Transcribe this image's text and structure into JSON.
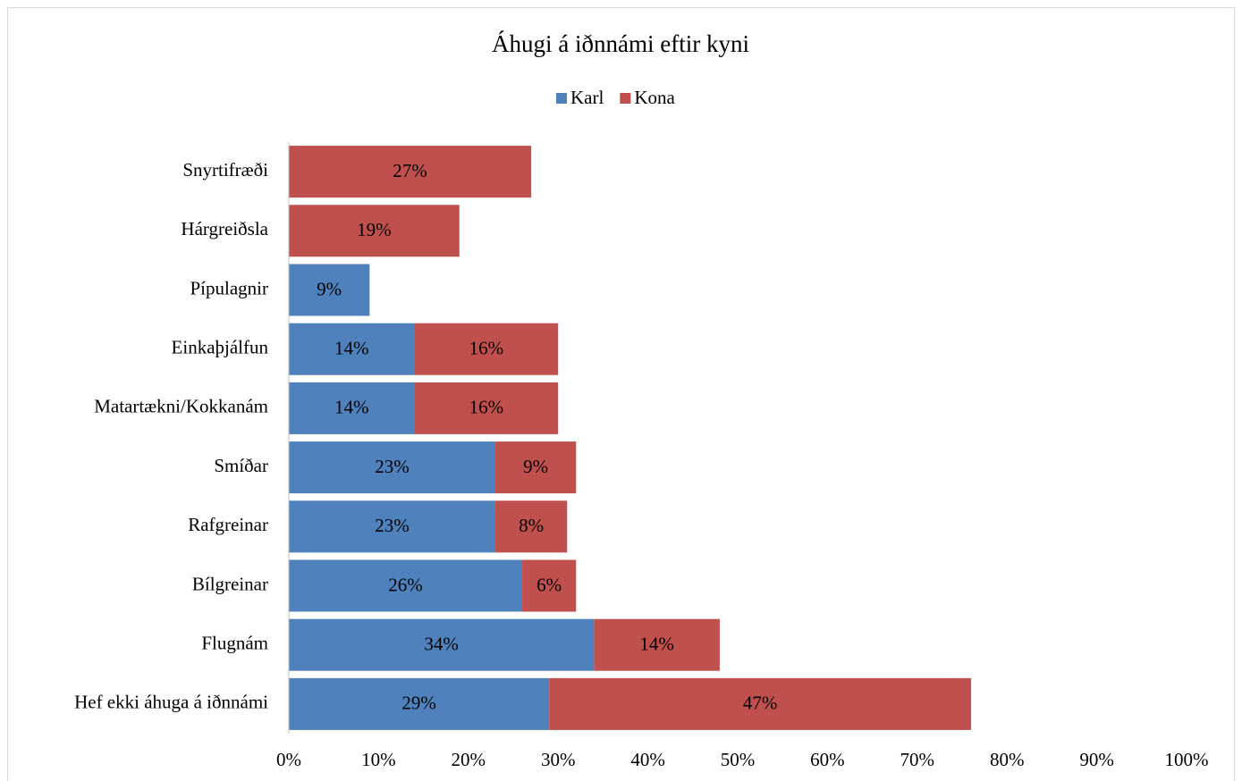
{
  "chart_data": {
    "type": "stacked_bar_horizontal",
    "title": "Áhugi á iðnnámi eftir kyni",
    "categories": [
      "Snyrtifræði",
      "Hárgreiðsla",
      "Pípulagnir",
      "Einkaþjálfun",
      "Matartækni/Kokkanám",
      "Smíðar",
      "Rafgreinar",
      "Bílgreinar",
      "Flugnám",
      "Hef ekki áhuga á iðnnámi"
    ],
    "series": [
      {
        "name": "Karl",
        "color": "#4f81bd",
        "values": [
          null,
          null,
          9,
          14,
          14,
          23,
          23,
          26,
          34,
          29
        ],
        "value_labels": [
          null,
          null,
          "9%",
          "14%",
          "14%",
          "23%",
          "23%",
          "26%",
          "34%",
          "29%"
        ]
      },
      {
        "name": "Kona",
        "color": "#c0504d",
        "values": [
          27,
          19,
          null,
          16,
          16,
          9,
          8,
          6,
          14,
          47
        ],
        "value_labels": [
          "27%",
          "19%",
          null,
          "16%",
          "16%",
          "9%",
          "8%",
          "6%",
          "14%",
          "47%"
        ]
      }
    ],
    "xlim": [
      0,
      100
    ],
    "xticks": [
      {
        "value": 0,
        "label": "0%"
      },
      {
        "value": 10,
        "label": "10%"
      },
      {
        "value": 20,
        "label": "20%"
      },
      {
        "value": 30,
        "label": "30%"
      },
      {
        "value": 40,
        "label": "40%"
      },
      {
        "value": 50,
        "label": "50%"
      },
      {
        "value": 60,
        "label": "60%"
      },
      {
        "value": 70,
        "label": "70%"
      },
      {
        "value": 80,
        "label": "80%"
      },
      {
        "value": 90,
        "label": "90%"
      },
      {
        "value": 100,
        "label": "100%"
      }
    ],
    "grid": false,
    "legend": "top"
  }
}
